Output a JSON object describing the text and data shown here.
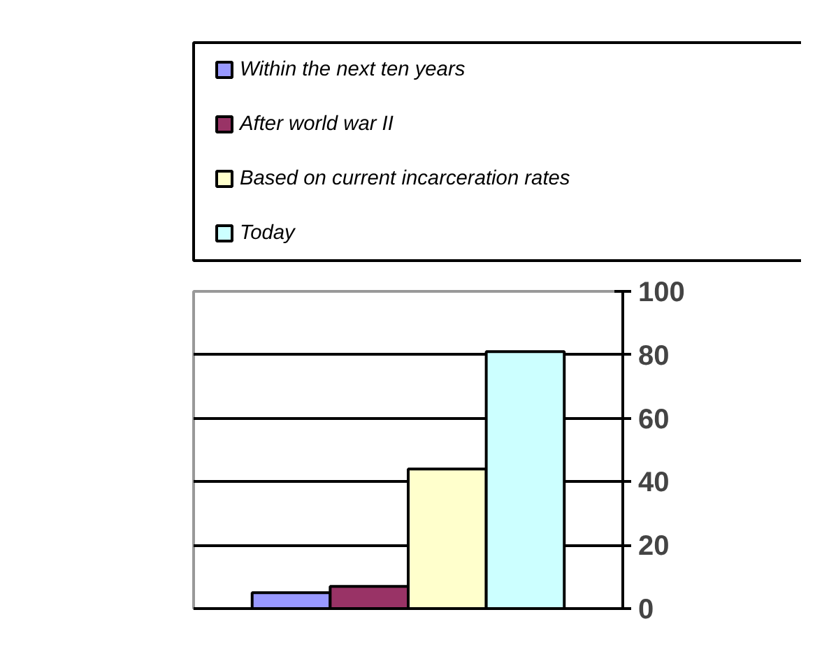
{
  "chart_data": {
    "type": "bar",
    "categories": [
      null
    ],
    "series": [
      {
        "name": "Within the next ten years",
        "color": "#9999ff",
        "values": [
          5
        ]
      },
      {
        "name": "After world war II",
        "color": "#993366",
        "values": [
          7
        ]
      },
      {
        "name": "Based on current incarceration rates",
        "color": "#ffffcc",
        "values": [
          44
        ]
      },
      {
        "name": "Today",
        "color": "#ccffff",
        "values": [
          81
        ]
      }
    ],
    "ylim": [
      0,
      100
    ],
    "yticks": [
      0,
      20,
      40,
      60,
      80,
      100
    ],
    "grid": "y",
    "legend": "top"
  }
}
